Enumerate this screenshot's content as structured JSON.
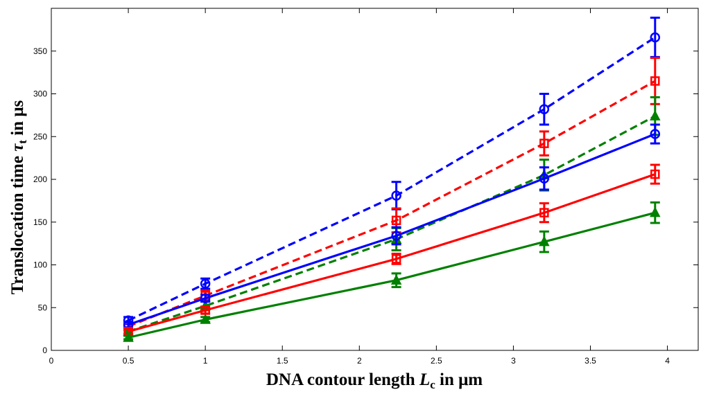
{
  "chart_data": {
    "type": "line",
    "xlabel": {
      "prefix": "DNA contour length ",
      "var": "L",
      "sub": "c",
      "suffix": " in μm"
    },
    "ylabel": {
      "prefix": "Translocation time ",
      "var": "τ",
      "sub": "t",
      "suffix": " in μs"
    },
    "xlim": [
      0,
      4.2
    ],
    "ylim": [
      0,
      400
    ],
    "xticks": [
      "0",
      "0.5",
      "1",
      "1.5",
      "2",
      "2.5",
      "3",
      "3.5",
      "4"
    ],
    "yticks": [
      "0",
      "50",
      "100",
      "150",
      "200",
      "250",
      "300",
      "350"
    ],
    "grid": false,
    "legend": "none",
    "x": [
      0.5,
      1.0,
      2.24,
      3.2,
      3.92
    ],
    "series": [
      {
        "color": "#0000ff",
        "style": "dashed",
        "marker": "circle",
        "values": [
          35,
          78,
          181,
          282,
          366
        ],
        "err": [
          4,
          6,
          16,
          18,
          23
        ]
      },
      {
        "color": "#ff0000",
        "style": "dashed",
        "marker": "square",
        "values": [
          28,
          64,
          152,
          242,
          315
        ],
        "err": [
          4,
          6,
          14,
          14,
          27
        ]
      },
      {
        "color": "#008000",
        "style": "dashed",
        "marker": "triangle",
        "values": [
          22,
          52,
          130,
          205,
          274
        ],
        "err": [
          3,
          5,
          13,
          18,
          22
        ]
      },
      {
        "color": "#0000ff",
        "style": "solid",
        "marker": "circle",
        "values": [
          30,
          61,
          134,
          201,
          253
        ],
        "err": [
          3,
          4,
          10,
          13,
          11
        ]
      },
      {
        "color": "#ff0000",
        "style": "solid",
        "marker": "square",
        "values": [
          22,
          47,
          107,
          161,
          206
        ],
        "err": [
          3,
          4,
          6,
          11,
          11
        ]
      },
      {
        "color": "#008000",
        "style": "solid",
        "marker": "triangle",
        "values": [
          15,
          36,
          82,
          127,
          161
        ],
        "err": [
          2,
          3,
          8,
          12,
          12
        ]
      }
    ]
  }
}
